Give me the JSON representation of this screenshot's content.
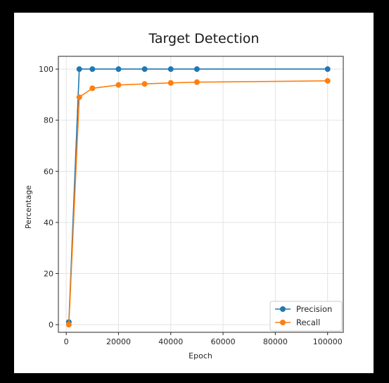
{
  "chart_data": {
    "type": "line",
    "title": "Target Detection",
    "xlabel": "Epoch",
    "ylabel": "Percentage",
    "xlim": [
      -3000,
      106000
    ],
    "ylim": [
      -3,
      105
    ],
    "xticks": [
      0,
      20000,
      40000,
      60000,
      80000,
      100000
    ],
    "yticks": [
      0,
      20,
      40,
      60,
      80,
      100
    ],
    "grid": true,
    "legend_position": "lower-right",
    "series": [
      {
        "name": "Precision",
        "color": "#1f77b4",
        "marker": "circle",
        "x": [
          1000,
          5000,
          10000,
          20000,
          30000,
          40000,
          50000,
          100000
        ],
        "y": [
          1,
          100,
          100,
          100,
          100,
          100,
          100,
          100
        ]
      },
      {
        "name": "Recall",
        "color": "#ff7f0e",
        "marker": "circle",
        "x": [
          1000,
          5000,
          10000,
          20000,
          30000,
          40000,
          50000,
          100000
        ],
        "y": [
          0,
          89,
          92.5,
          93.8,
          94.2,
          94.6,
          94.9,
          95.4
        ]
      }
    ]
  }
}
